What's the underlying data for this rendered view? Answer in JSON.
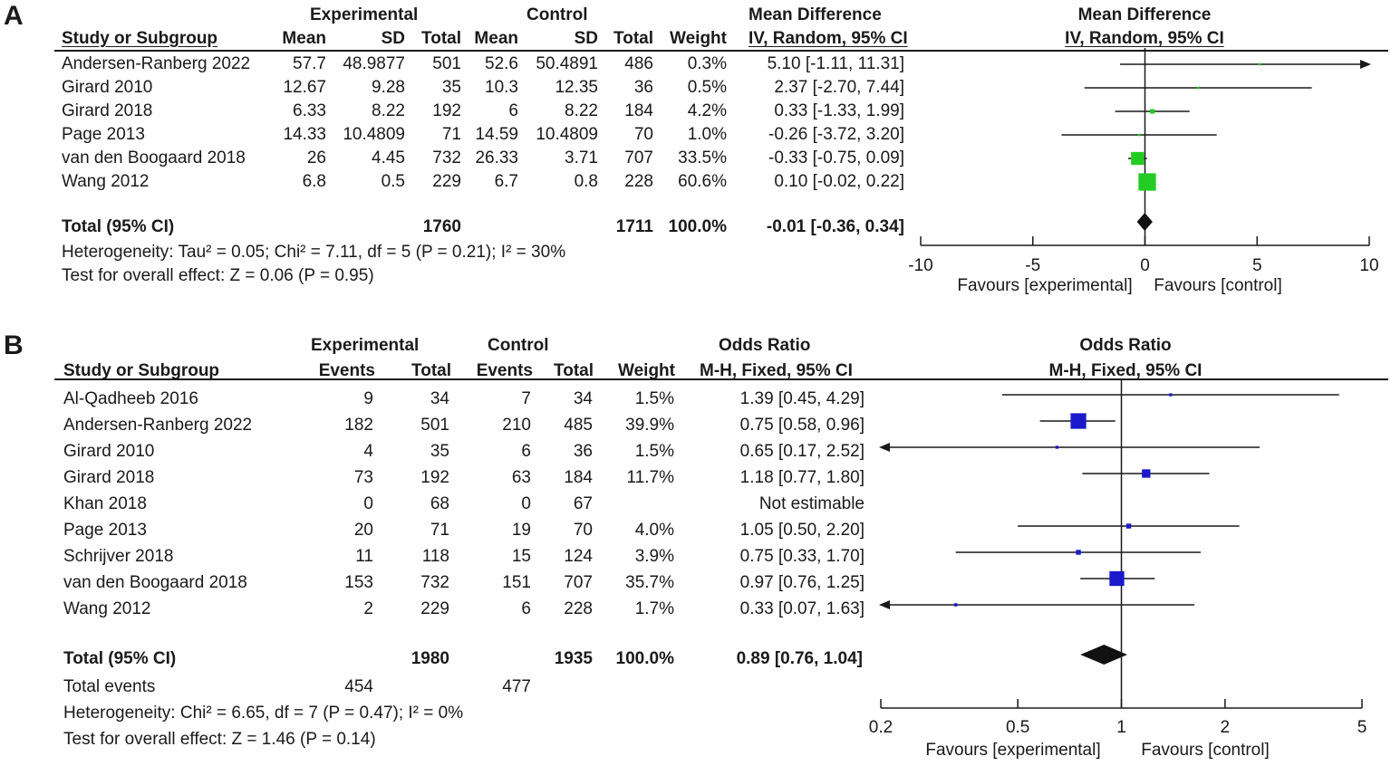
{
  "chart_data": [
    {
      "type": "forest",
      "panel_label": "A",
      "measure": "Mean Difference",
      "method": "IV, Random, 95% CI",
      "group_headers": {
        "experimental": "Experimental",
        "control": "Control"
      },
      "columns": [
        "Study or Subgroup",
        "Mean",
        "SD",
        "Total",
        "Mean",
        "SD",
        "Total",
        "Weight",
        "IV, Random, 95% CI"
      ],
      "studies": [
        {
          "name": "Andersen-Ranberg 2022",
          "exp_mean": "57.7",
          "exp_sd": "48.9877",
          "exp_total": "501",
          "ctl_mean": "52.6",
          "ctl_sd": "50.4891",
          "ctl_total": "486",
          "weight": "0.3%",
          "ci_text": "5.10 [-1.11, 11.31]",
          "est": 5.1,
          "lo": -1.11,
          "hi": 11.31,
          "w": 0.3
        },
        {
          "name": "Girard 2010",
          "exp_mean": "12.67",
          "exp_sd": "9.28",
          "exp_total": "35",
          "ctl_mean": "10.3",
          "ctl_sd": "12.35",
          "ctl_total": "36",
          "weight": "0.5%",
          "ci_text": "2.37 [-2.70, 7.44]",
          "est": 2.37,
          "lo": -2.7,
          "hi": 7.44,
          "w": 0.5
        },
        {
          "name": "Girard 2018",
          "exp_mean": "6.33",
          "exp_sd": "8.22",
          "exp_total": "192",
          "ctl_mean": "6",
          "ctl_sd": "8.22",
          "ctl_total": "184",
          "weight": "4.2%",
          "ci_text": "0.33 [-1.33, 1.99]",
          "est": 0.33,
          "lo": -1.33,
          "hi": 1.99,
          "w": 4.2
        },
        {
          "name": "Page 2013",
          "exp_mean": "14.33",
          "exp_sd": "10.4809",
          "exp_total": "71",
          "ctl_mean": "14.59",
          "ctl_sd": "10.4809",
          "ctl_total": "70",
          "weight": "1.0%",
          "ci_text": "-0.26 [-3.72, 3.20]",
          "est": -0.26,
          "lo": -3.72,
          "hi": 3.2,
          "w": 1.0
        },
        {
          "name": "van den Boogaard 2018",
          "exp_mean": "26",
          "exp_sd": "4.45",
          "exp_total": "732",
          "ctl_mean": "26.33",
          "ctl_sd": "3.71",
          "ctl_total": "707",
          "weight": "33.5%",
          "ci_text": "-0.33 [-0.75, 0.09]",
          "est": -0.33,
          "lo": -0.75,
          "hi": 0.09,
          "w": 33.5
        },
        {
          "name": "Wang 2012",
          "exp_mean": "6.8",
          "exp_sd": "0.5",
          "exp_total": "229",
          "ctl_mean": "6.7",
          "ctl_sd": "0.8",
          "ctl_total": "228",
          "weight": "60.6%",
          "ci_text": "0.10 [-0.02, 0.22]",
          "est": 0.1,
          "lo": -0.02,
          "hi": 0.22,
          "w": 60.6
        }
      ],
      "total": {
        "label": "Total (95% CI)",
        "exp_total": "1760",
        "ctl_total": "1711",
        "weight": "100.0%",
        "ci_text": "-0.01 [-0.36, 0.34]",
        "est": -0.01,
        "lo": -0.36,
        "hi": 0.34
      },
      "heterogeneity": "Heterogeneity: Tau² = 0.05; Chi² = 7.11, df = 5 (P = 0.21); I² = 30%",
      "overall_effect": "Test for overall effect: Z = 0.06 (P = 0.95)",
      "axis": {
        "scale": "linear",
        "range": [
          -10,
          10
        ],
        "null": 0,
        "ticks": [
          -10,
          -5,
          0,
          5,
          10
        ],
        "tick_labels": [
          "-10",
          "-5",
          "0",
          "5",
          "10"
        ]
      },
      "favours_left": "Favours [experimental]",
      "favours_right": "Favours [control]",
      "colors": {
        "marker": "#22cc22",
        "diamond": "#111111"
      }
    },
    {
      "type": "forest",
      "panel_label": "B",
      "measure": "Odds Ratio",
      "method": "M-H, Fixed, 95% CI",
      "group_headers": {
        "experimental": "Experimental",
        "control": "Control"
      },
      "columns": [
        "Study or Subgroup",
        "Events",
        "Total",
        "Events",
        "Total",
        "Weight",
        "M-H, Fixed, 95% CI"
      ],
      "studies": [
        {
          "name": "Al-Qadheeb 2016",
          "exp_events": "9",
          "exp_total": "34",
          "ctl_events": "7",
          "ctl_total": "34",
          "weight": "1.5%",
          "ci_text": "1.39 [0.45, 4.29]",
          "est": 1.39,
          "lo": 0.45,
          "hi": 4.29,
          "w": 1.5
        },
        {
          "name": "Andersen-Ranberg 2022",
          "exp_events": "182",
          "exp_total": "501",
          "ctl_events": "210",
          "ctl_total": "485",
          "weight": "39.9%",
          "ci_text": "0.75 [0.58, 0.96]",
          "est": 0.75,
          "lo": 0.58,
          "hi": 0.96,
          "w": 39.9
        },
        {
          "name": "Girard 2010",
          "exp_events": "4",
          "exp_total": "35",
          "ctl_events": "6",
          "ctl_total": "36",
          "weight": "1.5%",
          "ci_text": "0.65 [0.17, 2.52]",
          "est": 0.65,
          "lo": 0.17,
          "hi": 2.52,
          "w": 1.5
        },
        {
          "name": "Girard 2018",
          "exp_events": "73",
          "exp_total": "192",
          "ctl_events": "63",
          "ctl_total": "184",
          "weight": "11.7%",
          "ci_text": "1.18 [0.77, 1.80]",
          "est": 1.18,
          "lo": 0.77,
          "hi": 1.8,
          "w": 11.7
        },
        {
          "name": "Khan 2018",
          "exp_events": "0",
          "exp_total": "68",
          "ctl_events": "0",
          "ctl_total": "67",
          "weight": "",
          "ci_text": "Not estimable",
          "est": null,
          "lo": null,
          "hi": null,
          "w": 0
        },
        {
          "name": "Page 2013",
          "exp_events": "20",
          "exp_total": "71",
          "ctl_events": "19",
          "ctl_total": "70",
          "weight": "4.0%",
          "ci_text": "1.05 [0.50, 2.20]",
          "est": 1.05,
          "lo": 0.5,
          "hi": 2.2,
          "w": 4.0
        },
        {
          "name": "Schrijver 2018",
          "exp_events": "11",
          "exp_total": "118",
          "ctl_events": "15",
          "ctl_total": "124",
          "weight": "3.9%",
          "ci_text": "0.75 [0.33, 1.70]",
          "est": 0.75,
          "lo": 0.33,
          "hi": 1.7,
          "w": 3.9
        },
        {
          "name": "van den Boogaard 2018",
          "exp_events": "153",
          "exp_total": "732",
          "ctl_events": "151",
          "ctl_total": "707",
          "weight": "35.7%",
          "ci_text": "0.97 [0.76, 1.25]",
          "est": 0.97,
          "lo": 0.76,
          "hi": 1.25,
          "w": 35.7
        },
        {
          "name": "Wang 2012",
          "exp_events": "2",
          "exp_total": "229",
          "ctl_events": "6",
          "ctl_total": "228",
          "weight": "1.7%",
          "ci_text": "0.33 [0.07, 1.63]",
          "est": 0.33,
          "lo": 0.07,
          "hi": 1.63,
          "w": 1.7
        }
      ],
      "total": {
        "label": "Total (95% CI)",
        "exp_total": "1980",
        "ctl_total": "1935",
        "weight": "100.0%",
        "ci_text": "0.89 [0.76, 1.04]",
        "est": 0.89,
        "lo": 0.76,
        "hi": 1.04
      },
      "total_events": {
        "label": "Total events",
        "exp": "454",
        "ctl": "477"
      },
      "heterogeneity": "Heterogeneity: Chi² = 6.65, df = 7 (P = 0.47); I² = 0%",
      "overall_effect": "Test for overall effect: Z = 1.46 (P = 0.14)",
      "axis": {
        "scale": "log",
        "range": [
          0.2,
          5
        ],
        "null": 1,
        "ticks": [
          0.2,
          0.5,
          1,
          2,
          5
        ],
        "tick_labels": [
          "0.2",
          "0.5",
          "1",
          "2",
          "5"
        ]
      },
      "favours_left": "Favours [experimental]",
      "favours_right": "Favours [control]",
      "colors": {
        "marker": "#1a1acc",
        "diamond": "#111111"
      }
    }
  ]
}
